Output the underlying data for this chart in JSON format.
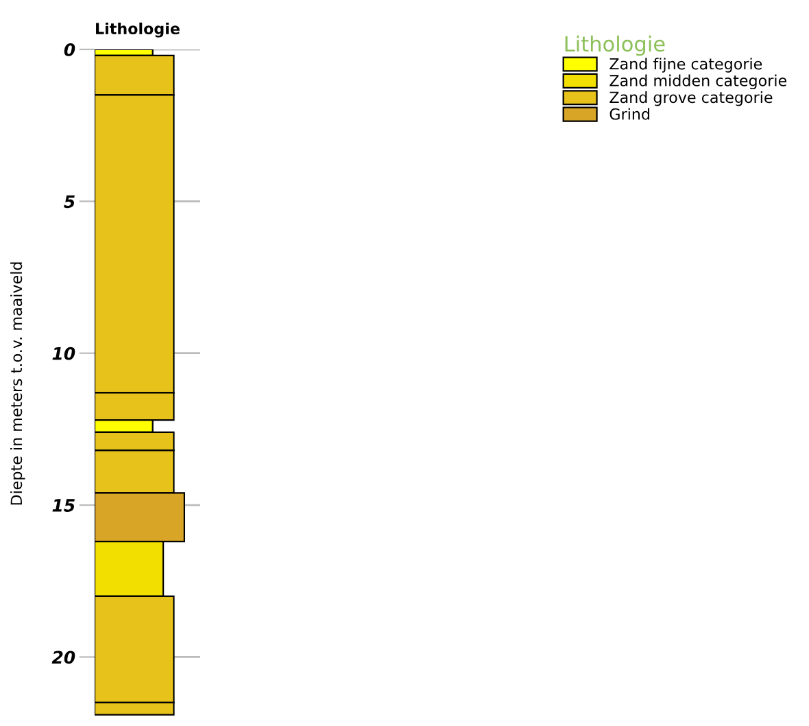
{
  "chart_data": {
    "type": "bar",
    "stacked": true,
    "title": "Lithologie",
    "ylabel": "Diepte in meters t.o.v. maaiveld",
    "legend_title": "Lithologie",
    "legend": "top right",
    "grid": "y",
    "categories": [
      null
    ],
    "ylim": [
      22,
      0
    ],
    "yticks": [
      0,
      5,
      10,
      15,
      20
    ],
    "series": [
      {
        "name": "Zand fijne categorie",
        "color": "#ffff00",
        "values": [
          0.2
        ]
      },
      {
        "name": "Zand grove categorie",
        "color": "#e6c21a",
        "values": [
          1.3
        ]
      },
      {
        "color": "#e6c21a",
        "values": [
          9.8
        ]
      },
      {
        "color": "#e6c21a",
        "values": [
          0.9
        ]
      },
      {
        "color": "#ffff00",
        "values": [
          0.4
        ]
      },
      {
        "color": "#e6c21a",
        "values": [
          0.6
        ]
      },
      {
        "color": "#e6c21a",
        "values": [
          1.4
        ]
      },
      {
        "name": "Grind",
        "color": "#d9a526",
        "values": [
          1.6
        ]
      },
      {
        "name": "Zand midden categorie",
        "color": "#f2df00",
        "values": [
          1.8
        ]
      },
      {
        "color": "#e6c21a",
        "values": [
          3.5
        ]
      },
      {
        "color": "#e6c21a",
        "values": [
          0.4
        ]
      }
    ]
  }
}
